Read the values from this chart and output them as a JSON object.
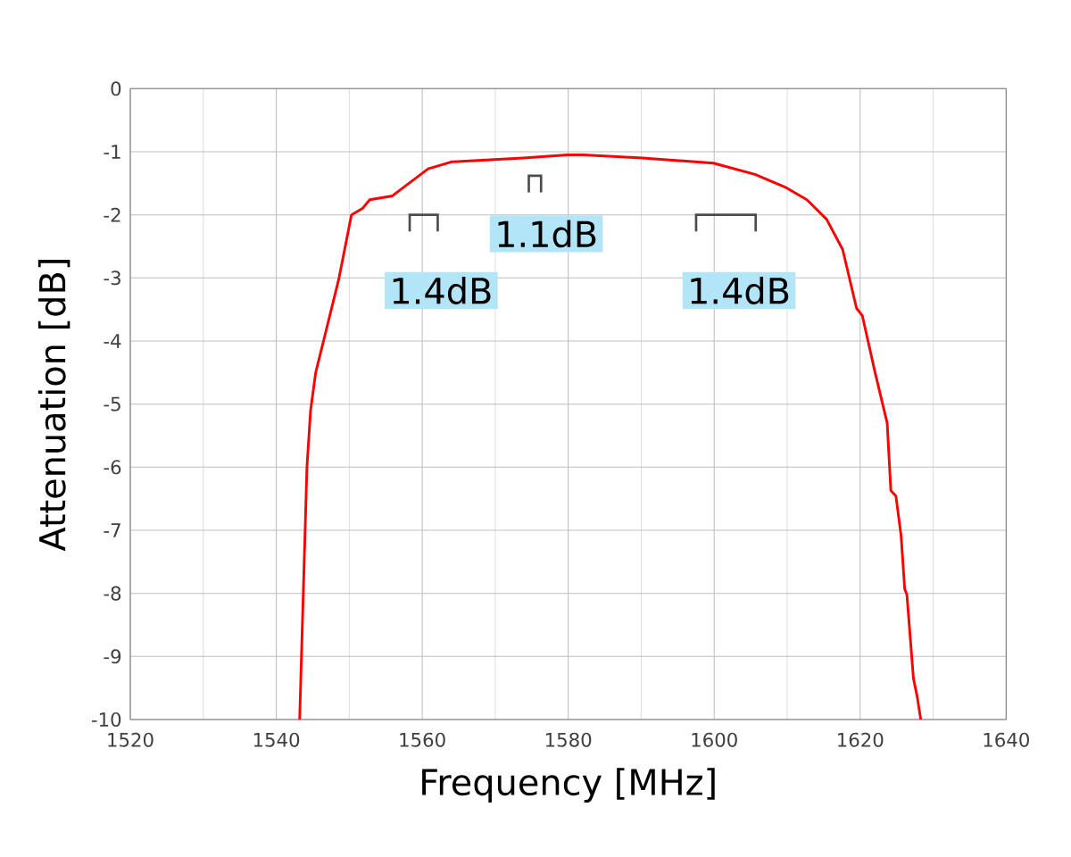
{
  "chart_data": {
    "type": "line",
    "xlabel": "Frequency [MHz]",
    "ylabel": "Attenuation [dB]",
    "xlim": [
      1520,
      1640
    ],
    "xticks": [
      1520,
      1540,
      1560,
      1580,
      1600,
      1620,
      1640
    ],
    "ylim": [
      -10,
      0
    ],
    "yticks": [
      -10,
      -9,
      -8,
      -7,
      -6,
      -5,
      -4,
      -3,
      -2,
      -1,
      0
    ],
    "grid": true,
    "series": [
      {
        "color": "#ff0000",
        "x": [
          1543.2,
          1544.2,
          1544.7,
          1545.4,
          1546.9,
          1548.6,
          1550.3,
          1551.8,
          1552.8,
          1555.9,
          1560.8,
          1564.0,
          1573.8,
          1579.9,
          1582.1,
          1590.2,
          1599.9,
          1605.6,
          1609.7,
          1612.7,
          1615.4,
          1617.6,
          1619.5,
          1620.3,
          1622.0,
          1623.7,
          1624.2,
          1624.9,
          1625.6,
          1626.1,
          1626.4,
          1627.3,
          1627.8,
          1628.3
        ],
        "values": [
          -10,
          -6.0,
          -5.1,
          -4.5,
          -3.8,
          -3.0,
          -2.0,
          -1.9,
          -1.76,
          -1.7,
          -1.27,
          -1.16,
          -1.1,
          -1.05,
          -1.05,
          -1.1,
          -1.18,
          -1.36,
          -1.56,
          -1.76,
          -2.07,
          -2.55,
          -3.48,
          -3.6,
          -4.48,
          -5.3,
          -6.37,
          -6.46,
          -7.08,
          -7.93,
          -8.02,
          -9.35,
          -9.63,
          -10
        ]
      }
    ],
    "annotations": [
      "1.4dB",
      "1.1dB",
      "1.4dB"
    ]
  }
}
